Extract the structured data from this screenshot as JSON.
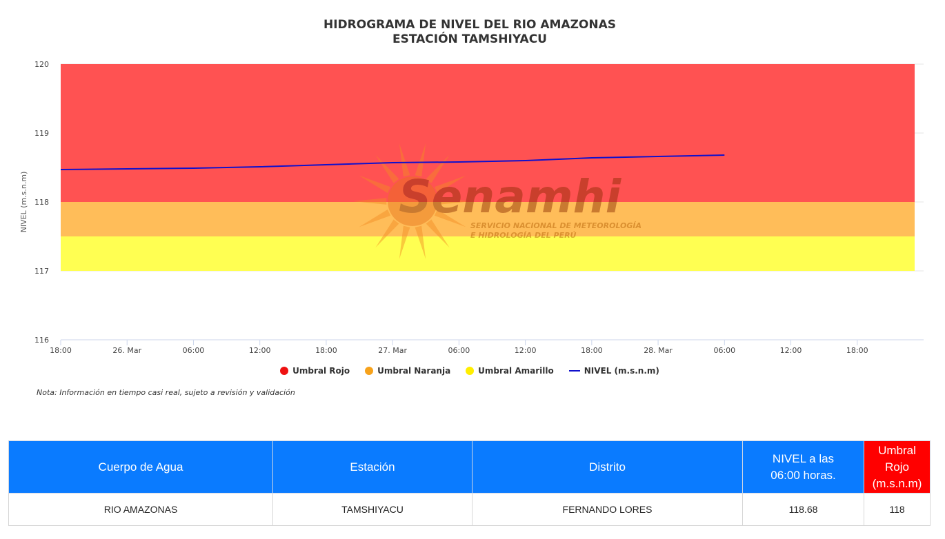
{
  "chart_data": {
    "type": "line",
    "title": "HIDROGRAMA DE NIVEL DEL RIO AMAZONAS",
    "subtitle": "ESTACIÓN TAMSHIYACU",
    "ylabel": "NIVEL (m.s.n.m)",
    "ylim": [
      116,
      120
    ],
    "yticks": [
      "116",
      "117",
      "118",
      "119",
      "120"
    ],
    "xlim": [
      "2025-03-25T18:00",
      "2025-03-29T00:00"
    ],
    "xticks": [
      {
        "t": "2025-03-25T18:00",
        "label": "18:00"
      },
      {
        "t": "2025-03-26T00:00",
        "label": "26. Mar"
      },
      {
        "t": "2025-03-26T06:00",
        "label": "06:00"
      },
      {
        "t": "2025-03-26T12:00",
        "label": "12:00"
      },
      {
        "t": "2025-03-26T18:00",
        "label": "18:00"
      },
      {
        "t": "2025-03-27T00:00",
        "label": "27. Mar"
      },
      {
        "t": "2025-03-27T06:00",
        "label": "06:00"
      },
      {
        "t": "2025-03-27T12:00",
        "label": "12:00"
      },
      {
        "t": "2025-03-27T18:00",
        "label": "18:00"
      },
      {
        "t": "2025-03-28T00:00",
        "label": "28. Mar"
      },
      {
        "t": "2025-03-28T06:00",
        "label": "06:00"
      },
      {
        "t": "2025-03-28T12:00",
        "label": "12:00"
      },
      {
        "t": "2025-03-28T18:00",
        "label": "18:00"
      }
    ],
    "bands": [
      {
        "name": "Umbral Rojo",
        "from": 118,
        "to": 120,
        "color": "#ff5252"
      },
      {
        "name": "Umbral Naranja",
        "from": 117.5,
        "to": 118,
        "color": "#ffbd59"
      },
      {
        "name": "Umbral Amarillo",
        "from": 117,
        "to": 117.5,
        "color": "#ffff52"
      }
    ],
    "series": [
      {
        "name": "NIVEL (m.s.n.m)",
        "color": "#1010cc",
        "points": [
          {
            "t": "2025-03-25T18:00",
            "y": 118.47
          },
          {
            "t": "2025-03-26T06:00",
            "y": 118.49
          },
          {
            "t": "2025-03-26T12:00",
            "y": 118.51
          },
          {
            "t": "2025-03-26T18:00",
            "y": 118.54
          },
          {
            "t": "2025-03-27T00:00",
            "y": 118.57
          },
          {
            "t": "2025-03-27T06:00",
            "y": 118.58
          },
          {
            "t": "2025-03-27T12:00",
            "y": 118.6
          },
          {
            "t": "2025-03-27T18:00",
            "y": 118.64
          },
          {
            "t": "2025-03-28T00:00",
            "y": 118.66
          },
          {
            "t": "2025-03-28T06:00",
            "y": 118.68
          }
        ]
      }
    ],
    "legend": [
      {
        "label": "Umbral Rojo",
        "color": "#ee1111",
        "shape": "dot"
      },
      {
        "label": "Umbral Naranja",
        "color": "#f7a21b",
        "shape": "dot"
      },
      {
        "label": "Umbral Amarillo",
        "color": "#ffee00",
        "shape": "dot"
      },
      {
        "label": "NIVEL (m.s.n.m)",
        "color": "#1010cc",
        "shape": "line"
      }
    ],
    "grid": true,
    "legend_position": "bottom"
  },
  "watermark": {
    "brand": "Senamhi",
    "tagline_1": "SERVICIO NACIONAL DE METEOROLOGÍA",
    "tagline_2": "E HIDROLOGÍA DEL PERÚ"
  },
  "note": "Nota: Información en tiempo casi real, sujeto a revisión y validación",
  "table": {
    "headers": {
      "body": "Cuerpo de Agua",
      "station": "Estación",
      "district": "Distrito",
      "level_line1": "NIVEL a las",
      "level_line2": "06:00 horas.",
      "red_line1": "Umbral Rojo",
      "red_line2": "(m.s.n.m)"
    },
    "row": {
      "body": "RIO AMAZONAS",
      "station": "TAMSHIYACU",
      "district": "FERNANDO LORES",
      "level": "118.68",
      "red": "118"
    }
  }
}
